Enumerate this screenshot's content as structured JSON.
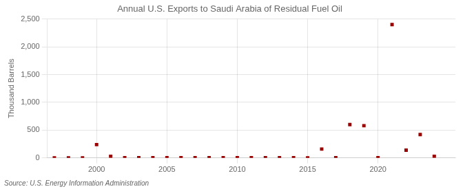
{
  "chart_data": {
    "type": "scatter",
    "title": "Annual U.S. Exports to Saudi Arabia of Residual Fuel Oil",
    "y_label": "Thousand Barrels",
    "annotations": [
      "Source: U.S. Energy Information Administration"
    ],
    "x": [
      1997,
      1998,
      1999,
      2000,
      2001,
      2002,
      2003,
      2004,
      2005,
      2006,
      2007,
      2008,
      2009,
      2010,
      2011,
      2012,
      2013,
      2014,
      2015,
      2016,
      2017,
      2018,
      2019,
      2020,
      2021,
      2022,
      2023,
      2024
    ],
    "values": [
      0,
      0,
      0,
      240,
      30,
      5,
      5,
      5,
      5,
      5,
      5,
      5,
      5,
      5,
      5,
      5,
      5,
      5,
      0,
      160,
      5,
      600,
      580,
      5,
      2400,
      140,
      420,
      30
    ],
    "color": "#990000",
    "marker": "square",
    "xlim": [
      1996.5,
      2025.5
    ],
    "xticks": [
      2000,
      2005,
      2010,
      2015,
      2020
    ],
    "ylim": [
      0,
      2500
    ],
    "yticks": [
      0,
      500,
      {
        "value": 1000,
        "label": "1,000"
      },
      {
        "value": 1500,
        "label": "1,500"
      },
      {
        "value": 2000,
        "label": "2,000"
      },
      {
        "value": 2500,
        "label": "2,500"
      }
    ],
    "grid": true
  }
}
